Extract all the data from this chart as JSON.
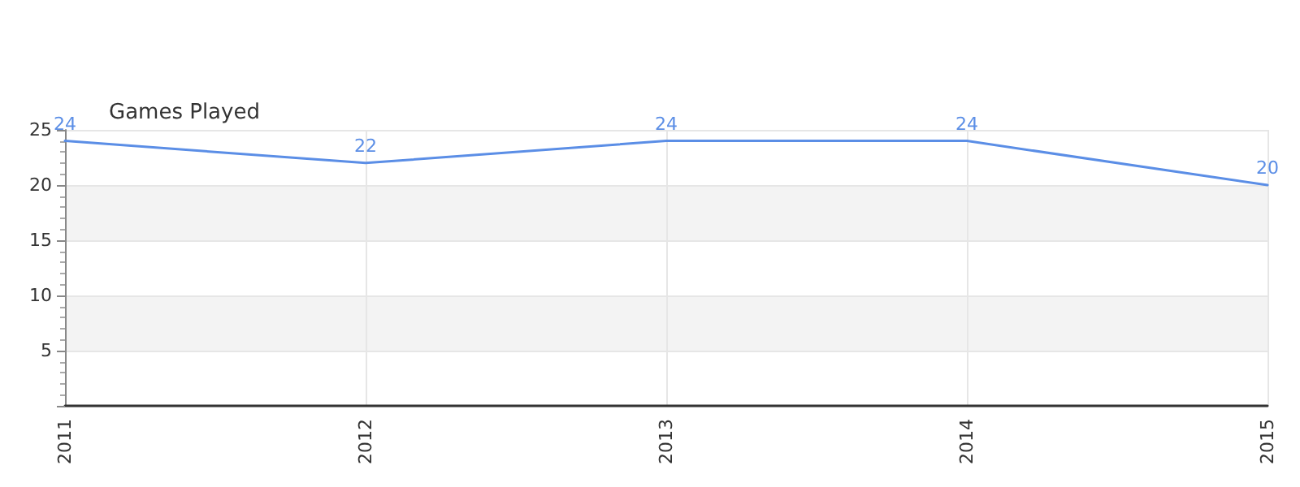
{
  "chart_data": {
    "type": "line",
    "title": "Games Played",
    "categories": [
      "2011",
      "2012",
      "2013",
      "2014",
      "2015"
    ],
    "series": [
      {
        "color": "#5b8ee6",
        "values": [
          24,
          22,
          24,
          24,
          20
        ]
      }
    ],
    "ylim": [
      0,
      25
    ],
    "yticks": [
      {
        "value": 0,
        "label": null
      },
      5,
      10,
      15,
      20,
      25
    ],
    "grid": true,
    "data_labels": true,
    "marker": "none",
    "line_style": "solid"
  }
}
